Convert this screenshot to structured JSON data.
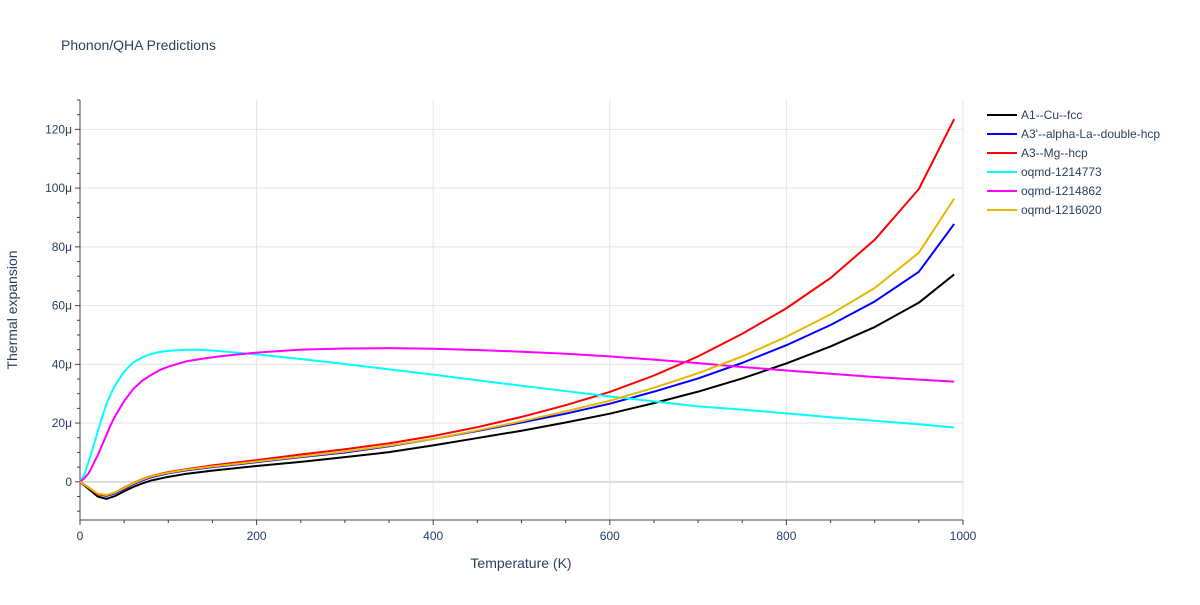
{
  "chart_data": {
    "type": "line",
    "title": "Phonon/QHA Predictions",
    "xlabel": "Temperature (K)",
    "ylabel": "Thermal expansion",
    "xlim": [
      0,
      1000
    ],
    "ylim": [
      -13,
      130
    ],
    "x_ticks": [
      0,
      200,
      400,
      600,
      800,
      1000
    ],
    "x_tick_labels": [
      "0",
      "200",
      "400",
      "600",
      "800",
      "1000"
    ],
    "y_ticks": [
      0,
      20,
      40,
      60,
      80,
      100,
      120
    ],
    "y_tick_labels": [
      "0",
      "20μ",
      "40μ",
      "60μ",
      "80μ",
      "100μ",
      "120μ"
    ],
    "y_unit_note": "values in units of 1e-6 (μ)",
    "grid": true,
    "legend_position": "right",
    "series": [
      {
        "name": "A1--Cu--fcc",
        "color": "#000000",
        "points": [
          [
            0,
            0
          ],
          [
            10,
            -2.5
          ],
          [
            20,
            -5
          ],
          [
            30,
            -5.8
          ],
          [
            40,
            -4.8
          ],
          [
            50,
            -3.2
          ],
          [
            60,
            -1.8
          ],
          [
            70,
            -0.6
          ],
          [
            80,
            0.4
          ],
          [
            100,
            1.7
          ],
          [
            120,
            2.7
          ],
          [
            150,
            3.8
          ],
          [
            200,
            5.4
          ],
          [
            250,
            6.8
          ],
          [
            300,
            8.4
          ],
          [
            350,
            10.1
          ],
          [
            400,
            12.4
          ],
          [
            450,
            14.9
          ],
          [
            500,
            17.4
          ],
          [
            550,
            20.2
          ],
          [
            600,
            23.2
          ],
          [
            650,
            26.8
          ],
          [
            700,
            30.7
          ],
          [
            750,
            35.2
          ],
          [
            800,
            40.3
          ],
          [
            850,
            46.1
          ],
          [
            900,
            52.7
          ],
          [
            950,
            61.0
          ],
          [
            990,
            70.6
          ]
        ]
      },
      {
        "name": "A3'--alpha-La--double-hcp",
        "color": "#0000ff",
        "points": [
          [
            0,
            0
          ],
          [
            10,
            -2.0
          ],
          [
            20,
            -4.2
          ],
          [
            30,
            -4.8
          ],
          [
            40,
            -3.9
          ],
          [
            50,
            -2.4
          ],
          [
            60,
            -0.9
          ],
          [
            70,
            0.4
          ],
          [
            80,
            1.5
          ],
          [
            100,
            2.9
          ],
          [
            120,
            3.9
          ],
          [
            150,
            5.0
          ],
          [
            200,
            6.7
          ],
          [
            250,
            8.4
          ],
          [
            300,
            10.0
          ],
          [
            350,
            12.1
          ],
          [
            400,
            14.6
          ],
          [
            450,
            17.3
          ],
          [
            500,
            20.2
          ],
          [
            550,
            23.2
          ],
          [
            600,
            26.6
          ],
          [
            650,
            30.7
          ],
          [
            700,
            35.2
          ],
          [
            750,
            40.5
          ],
          [
            800,
            46.5
          ],
          [
            850,
            53.4
          ],
          [
            900,
            61.4
          ],
          [
            950,
            71.5
          ],
          [
            990,
            87.8
          ]
        ]
      },
      {
        "name": "A3--Mg--hcp",
        "color": "#ff0000",
        "points": [
          [
            0,
            0
          ],
          [
            10,
            -2.0
          ],
          [
            20,
            -4.2
          ],
          [
            30,
            -4.6
          ],
          [
            40,
            -3.6
          ],
          [
            50,
            -2.0
          ],
          [
            60,
            -0.5
          ],
          [
            70,
            0.8
          ],
          [
            80,
            1.9
          ],
          [
            100,
            3.3
          ],
          [
            120,
            4.3
          ],
          [
            150,
            5.6
          ],
          [
            200,
            7.4
          ],
          [
            250,
            9.3
          ],
          [
            300,
            11.1
          ],
          [
            350,
            13.1
          ],
          [
            400,
            15.6
          ],
          [
            450,
            18.6
          ],
          [
            500,
            22.1
          ],
          [
            550,
            26.1
          ],
          [
            600,
            30.6
          ],
          [
            650,
            36.2
          ],
          [
            700,
            42.7
          ],
          [
            750,
            50.4
          ],
          [
            800,
            59.1
          ],
          [
            850,
            69.4
          ],
          [
            900,
            82.4
          ],
          [
            950,
            99.7
          ],
          [
            990,
            123.5
          ]
        ]
      },
      {
        "name": "oqmd-1214773",
        "color": "#00ffff",
        "points": [
          [
            0,
            0
          ],
          [
            5,
            2.5
          ],
          [
            10,
            7
          ],
          [
            15,
            12
          ],
          [
            20,
            17
          ],
          [
            25,
            22
          ],
          [
            30,
            26.5
          ],
          [
            35,
            30
          ],
          [
            40,
            33
          ],
          [
            50,
            37.5
          ],
          [
            60,
            40.6
          ],
          [
            70,
            42.3
          ],
          [
            80,
            43.5
          ],
          [
            90,
            44.2
          ],
          [
            100,
            44.6
          ],
          [
            115,
            44.9
          ],
          [
            130,
            45.0
          ],
          [
            150,
            44.7
          ],
          [
            200,
            43.4
          ],
          [
            250,
            41.8
          ],
          [
            300,
            40.1
          ],
          [
            350,
            38.3
          ],
          [
            400,
            36.5
          ],
          [
            450,
            34.6
          ],
          [
            500,
            32.7
          ],
          [
            550,
            30.9
          ],
          [
            600,
            29.1
          ],
          [
            650,
            27.4
          ],
          [
            700,
            25.7
          ],
          [
            750,
            24.6
          ],
          [
            800,
            23.3
          ],
          [
            850,
            22.0
          ],
          [
            900,
            20.8
          ],
          [
            950,
            19.6
          ],
          [
            990,
            18.5
          ]
        ]
      },
      {
        "name": "oqmd-1214862",
        "color": "#ff00ff",
        "points": [
          [
            0,
            0
          ],
          [
            5,
            1.2
          ],
          [
            10,
            3
          ],
          [
            15,
            6
          ],
          [
            20,
            9
          ],
          [
            25,
            12.5
          ],
          [
            30,
            16
          ],
          [
            35,
            19.5
          ],
          [
            40,
            22.5
          ],
          [
            50,
            27.5
          ],
          [
            60,
            31.5
          ],
          [
            70,
            34.3
          ],
          [
            80,
            36.3
          ],
          [
            90,
            38
          ],
          [
            100,
            39.2
          ],
          [
            120,
            41
          ],
          [
            140,
            42
          ],
          [
            160,
            42.8
          ],
          [
            200,
            44.0
          ],
          [
            250,
            45.0
          ],
          [
            300,
            45.4
          ],
          [
            350,
            45.5
          ],
          [
            400,
            45.3
          ],
          [
            450,
            44.9
          ],
          [
            500,
            44.3
          ],
          [
            550,
            43.6
          ],
          [
            600,
            42.7
          ],
          [
            650,
            41.6
          ],
          [
            700,
            40.4
          ],
          [
            750,
            39.1
          ],
          [
            800,
            37.9
          ],
          [
            850,
            36.8
          ],
          [
            900,
            35.7
          ],
          [
            950,
            34.8
          ],
          [
            990,
            34.1
          ]
        ]
      },
      {
        "name": "oqmd-1216020",
        "color": "#e6b800",
        "points": [
          [
            0,
            0
          ],
          [
            10,
            -2.0
          ],
          [
            20,
            -4.0
          ],
          [
            30,
            -4.5
          ],
          [
            40,
            -3.6
          ],
          [
            50,
            -2.1
          ],
          [
            60,
            -0.6
          ],
          [
            70,
            0.7
          ],
          [
            80,
            1.8
          ],
          [
            100,
            3.1
          ],
          [
            120,
            4.1
          ],
          [
            150,
            5.2
          ],
          [
            200,
            6.9
          ],
          [
            250,
            8.6
          ],
          [
            300,
            10.3
          ],
          [
            350,
            12.3
          ],
          [
            400,
            14.6
          ],
          [
            450,
            17.5
          ],
          [
            500,
            20.6
          ],
          [
            550,
            24.0
          ],
          [
            600,
            27.6
          ],
          [
            650,
            32.0
          ],
          [
            700,
            37.0
          ],
          [
            750,
            42.7
          ],
          [
            800,
            49.4
          ],
          [
            850,
            57.0
          ],
          [
            900,
            66.0
          ],
          [
            950,
            78.0
          ],
          [
            990,
            96.4
          ]
        ]
      }
    ]
  }
}
